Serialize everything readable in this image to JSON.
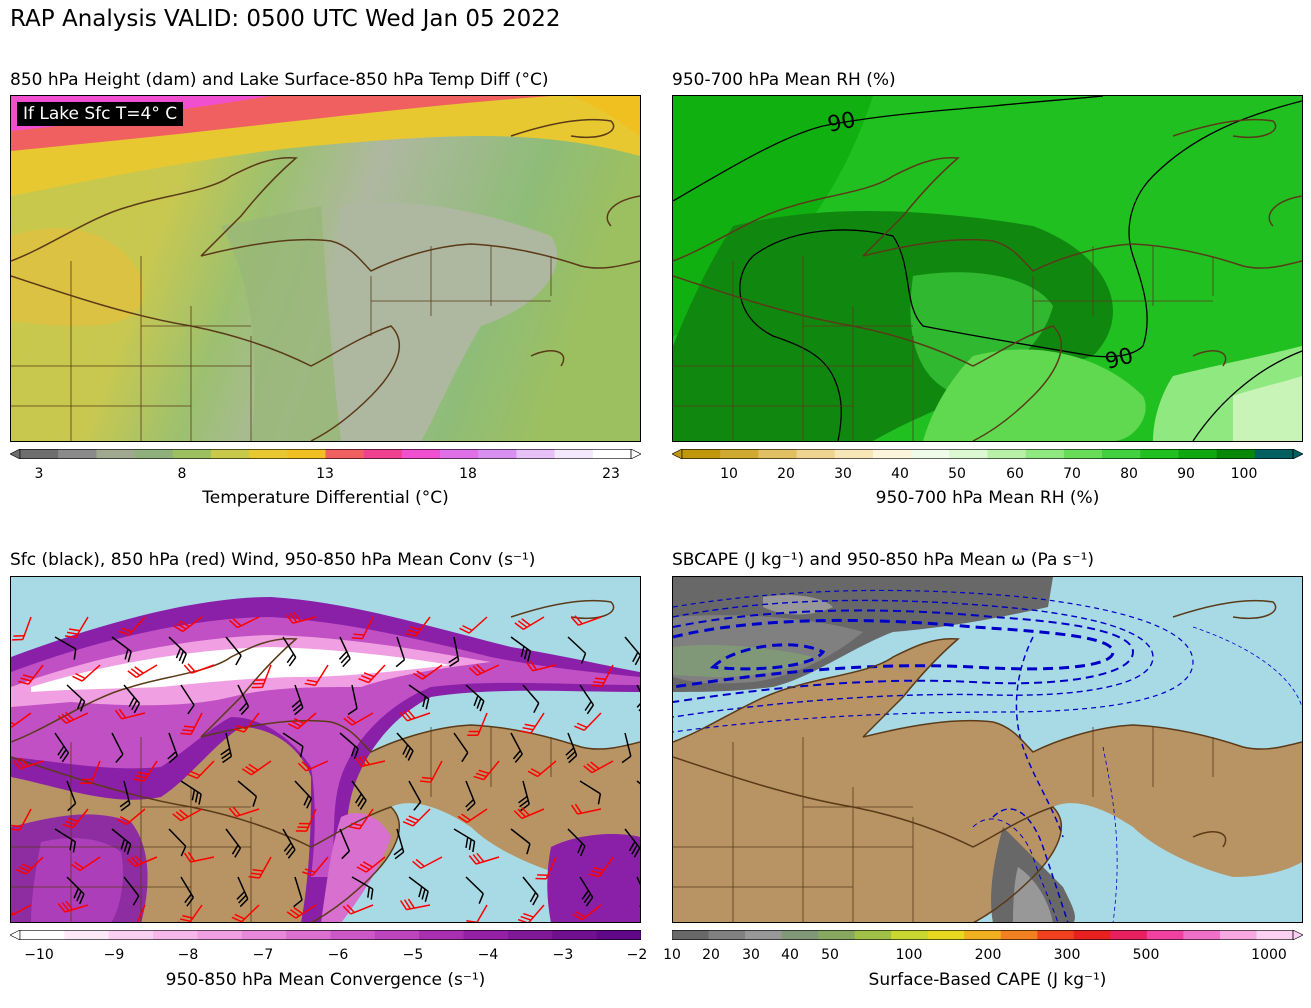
{
  "title": "RAP Analysis VALID: 0500 UTC Wed Jan 05 2022",
  "panels": {
    "tl": {
      "title": "850 hPa Height (dam) and Lake Surface-850 hPa Temp Diff (°C)",
      "annotation": "If Lake Sfc T=4° C",
      "colorbar_label": "Temperature Differential (°C)",
      "ticks": [
        "3",
        "8",
        "13",
        "18",
        "23"
      ],
      "colors": [
        "#6e6e6e",
        "#8a8a8a",
        "#a0a890",
        "#8fb07a",
        "#9cc060",
        "#c8c84a",
        "#e8c830",
        "#f0c020",
        "#f06060",
        "#f04090",
        "#f050d0",
        "#e070e8",
        "#d890f0",
        "#e8c0f8",
        "#f4e8fc",
        "#ffffff"
      ]
    },
    "tr": {
      "title": "950-700 hPa Mean RH (%)",
      "contour_labels": [
        "90",
        "90"
      ],
      "colorbar_label": "950-700 hPa Mean RH (%)",
      "ticks": [
        "10",
        "20",
        "30",
        "40",
        "50",
        "60",
        "70",
        "80",
        "90",
        "100"
      ],
      "colors": [
        "#c0960a",
        "#d0aa30",
        "#e0c060",
        "#eed490",
        "#f6e6b8",
        "#fdf4dc",
        "#f0fbe8",
        "#dcf8d0",
        "#b8f0a8",
        "#90e880",
        "#68dc58",
        "#40d040",
        "#20c020",
        "#10a810",
        "#088808",
        "#006060"
      ]
    },
    "bl": {
      "title": "Sfc (black), 850 hPa (red) Wind, 950-850 hPa Mean Conv (s⁻¹)",
      "colorbar_label": "950-850 hPa Mean Convergence (s⁻¹)",
      "ticks": [
        "−10",
        "−9",
        "−8",
        "−7",
        "−6",
        "−5",
        "−4",
        "−3",
        "−2"
      ],
      "colors": [
        "#ffffff",
        "#fde8f8",
        "#fad0f2",
        "#f6b8ea",
        "#f0a0e2",
        "#e888da",
        "#dc70d0",
        "#cc58c6",
        "#bc44bc",
        "#a830b0",
        "#9420a6",
        "#801898",
        "#70108e",
        "#600888"
      ]
    },
    "br": {
      "title": "SBCAPE (J kg⁻¹) and 950-850 hPa Mean ω (Pa s⁻¹)",
      "colorbar_label": "Surface-Based CAPE (J kg⁻¹)",
      "ticks": [
        "10",
        "20",
        "30",
        "40",
        "50",
        "100",
        "200",
        "300",
        "500",
        "1000"
      ],
      "colors": [
        "#686868",
        "#808080",
        "#989898",
        "#809878",
        "#88a860",
        "#a0c048",
        "#c8d830",
        "#e8d820",
        "#f0b020",
        "#f08020",
        "#f04020",
        "#e82020",
        "#e82060",
        "#f040a0",
        "#f070c8",
        "#f8a8e0",
        "#fcd0f0"
      ]
    }
  },
  "colors": {
    "land": "#b89464",
    "water": "#a8dae6",
    "coast": "#5a3a18",
    "border": "#5a3a18",
    "red_barb": "#ff0000",
    "black_barb": "#000000",
    "omega_contour": "#0000c8"
  }
}
